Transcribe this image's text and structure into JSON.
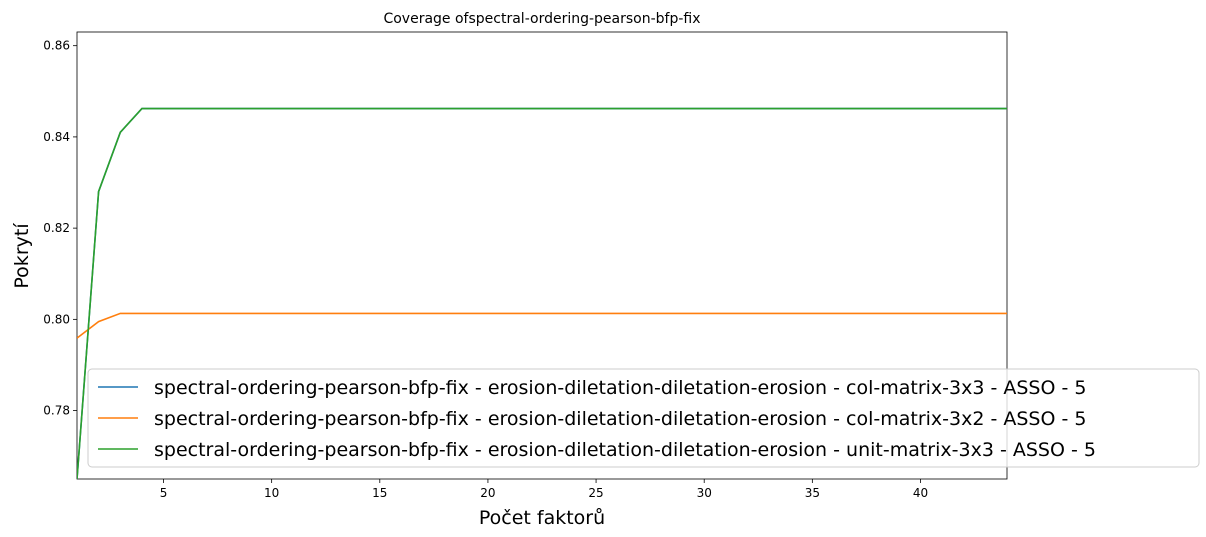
{
  "chart_data": {
    "type": "line",
    "title": "Coverage ofspectral-ordering-pearson-bfp-fix",
    "xlabel": "Počet faktorů",
    "ylabel": "Pokrytí",
    "xlim": [
      1,
      44
    ],
    "ylim": [
      0.765,
      0.863
    ],
    "xticks": [
      5,
      10,
      15,
      20,
      25,
      30,
      35,
      40
    ],
    "yticks": [
      0.78,
      0.8,
      0.82,
      0.84,
      0.86
    ],
    "ytick_labels": [
      "0.78",
      "0.80",
      "0.82",
      "0.84",
      "0.86"
    ],
    "grid": false,
    "legend_location": "lower right",
    "series": [
      {
        "name": "spectral-ordering-pearson-bfp-fix - erosion-diletation-diletation-erosion - col-matrix-3x3 - ASSO - 5",
        "color": "#1f77b4",
        "x": [
          1,
          2,
          3,
          4,
          44
        ],
        "y": [
          0.765,
          0.828,
          0.841,
          0.8462,
          0.8462
        ]
      },
      {
        "name": "spectral-ordering-pearson-bfp-fix - erosion-diletation-diletation-erosion - col-matrix-3x2 - ASSO - 5",
        "color": "#ff7f0e",
        "x": [
          1,
          2,
          3,
          4,
          44
        ],
        "y": [
          0.7959,
          0.7995,
          0.8013,
          0.8013,
          0.8013
        ]
      },
      {
        "name": "spectral-ordering-pearson-bfp-fix - erosion-diletation-diletation-erosion - unit-matrix-3x3 - ASSO - 5",
        "color": "#2ca02c",
        "x": [
          1,
          2,
          3,
          4,
          44
        ],
        "y": [
          0.765,
          0.828,
          0.841,
          0.8462,
          0.8462
        ]
      }
    ]
  }
}
